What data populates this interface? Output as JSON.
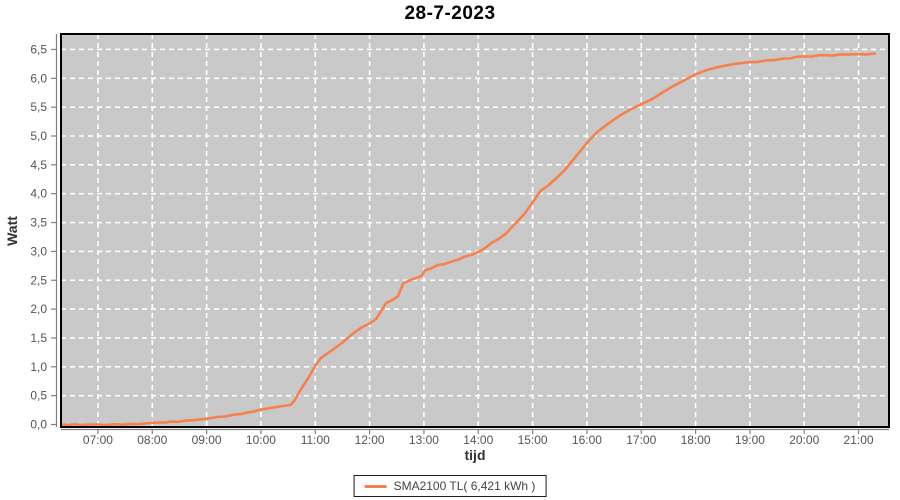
{
  "title": "28-7-2023",
  "axes": {
    "x_label": "tijd",
    "y_label": "Watt",
    "x_tick_labels": [
      "07:00",
      "08:00",
      "09:00",
      "10:00",
      "11:00",
      "12:00",
      "13:00",
      "14:00",
      "15:00",
      "16:00",
      "17:00",
      "18:00",
      "19:00",
      "20:00",
      "21:00"
    ],
    "y_tick_labels": [
      "0,0",
      "0,5",
      "1,0",
      "1,5",
      "2,0",
      "2,5",
      "3,0",
      "3,5",
      "4,0",
      "4,5",
      "5,0",
      "5,5",
      "6,0",
      "6,5"
    ]
  },
  "legend": {
    "label": "SMA2100 TL( 6,421 kWh )",
    "position": "bottom-center"
  },
  "colors": {
    "series": "#f7814c",
    "plot_background": "#c9c9c9",
    "grid": "#ffffff",
    "plot_border": "#000000",
    "axis_line": "#808080",
    "tick_label": "#555555",
    "title": "#000000",
    "axis_title": "#333333",
    "legend_border": "#1a1a1a",
    "legend_background": "#ffffff"
  },
  "chart_data": {
    "type": "line",
    "series": [
      {
        "name": "SMA2100 TL( 6,421 kWh )",
        "color": "#f7814c",
        "x_hours": [
          6.33,
          6.8,
          7.0,
          7.3,
          7.6,
          7.9,
          8.1,
          8.35,
          8.6,
          8.8,
          9.0,
          9.2,
          9.5,
          9.75,
          10.0,
          10.2,
          10.4,
          10.55,
          10.62,
          10.75,
          10.9,
          11.0,
          11.1,
          11.3,
          11.5,
          11.7,
          11.85,
          12.0,
          12.12,
          12.2,
          12.3,
          12.42,
          12.52,
          12.62,
          12.8,
          12.95,
          13.02,
          13.25,
          13.5,
          13.75,
          14.0,
          14.25,
          14.5,
          14.7,
          14.85,
          15.0,
          15.15,
          15.3,
          15.45,
          15.6,
          15.8,
          16.0,
          16.2,
          16.4,
          16.6,
          16.8,
          17.0,
          17.2,
          17.4,
          17.6,
          17.8,
          18.0,
          18.2,
          18.4,
          18.6,
          18.8,
          19.0,
          19.3,
          19.6,
          20.0,
          20.4,
          20.8,
          21.0,
          21.3
        ],
        "y_kwh": [
          0.0,
          0.0,
          0.0,
          0.005,
          0.01,
          0.02,
          0.035,
          0.05,
          0.065,
          0.08,
          0.1,
          0.13,
          0.17,
          0.21,
          0.26,
          0.29,
          0.32,
          0.34,
          0.42,
          0.63,
          0.85,
          1.02,
          1.15,
          1.28,
          1.42,
          1.58,
          1.68,
          1.75,
          1.83,
          1.95,
          2.1,
          2.16,
          2.22,
          2.45,
          2.52,
          2.57,
          2.67,
          2.76,
          2.82,
          2.91,
          2.99,
          3.15,
          3.3,
          3.5,
          3.65,
          3.85,
          4.05,
          4.15,
          4.28,
          4.42,
          4.65,
          4.88,
          5.08,
          5.22,
          5.35,
          5.46,
          5.55,
          5.64,
          5.76,
          5.87,
          5.97,
          6.07,
          6.14,
          6.19,
          6.23,
          6.26,
          6.28,
          6.31,
          6.34,
          6.38,
          6.4,
          6.41,
          6.42,
          6.43
        ]
      }
    ],
    "title": "28-7-2023",
    "xlabel": "tijd",
    "ylabel": "Watt",
    "x_unit": "hour-of-day",
    "y_unit": "kWh (cumulative, axis labeled Watt)",
    "xlim": [
      6.32,
      21.56
    ],
    "ylim": [
      0,
      6.77
    ],
    "x_tick_hours": [
      7,
      8,
      9,
      10,
      11,
      12,
      13,
      14,
      15,
      16,
      17,
      18,
      19,
      20,
      21
    ],
    "y_tick_values": [
      0,
      0.5,
      1.0,
      1.5,
      2.0,
      2.5,
      3.0,
      3.5,
      4.0,
      4.5,
      5.0,
      5.5,
      6.0,
      6.5
    ],
    "grid": "white dashed on gray",
    "legend_total_kwh": "6,421",
    "legend_position": "bottom"
  }
}
